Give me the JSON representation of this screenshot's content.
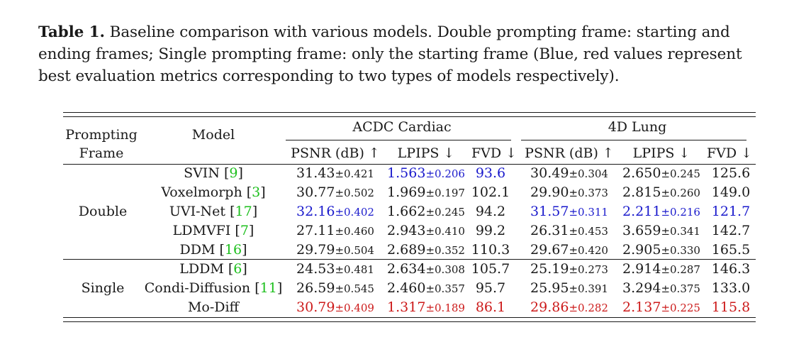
{
  "caption": {
    "label": "Table 1.",
    "text": " Baseline comparison with various models. Double prompting frame: starting and ending frames; Single prompting frame: only the starting frame (Blue, red values represent best evaluation metrics corresponding to two types of models respectively)."
  },
  "table": {
    "headers": {
      "prompting_line1": "Prompting",
      "prompting_line2": "Frame",
      "model": "Model",
      "group1": "ACDC Cardiac",
      "group2": "4D Lung",
      "metrics": [
        "PSNR (dB) ↑",
        "LPIPS ↓",
        "FVD ↓",
        "PSNR (dB) ↑",
        "LPIPS ↓",
        "FVD ↓"
      ]
    },
    "groups": [
      {
        "name": "Double"
      },
      {
        "name": "Single"
      }
    ],
    "rows": [
      {
        "model": "SVIN ",
        "ref": "9",
        "c1v": "31.43",
        "c1e": "±0.421",
        "c2v": "1.563",
        "c2e": "±0.206",
        "c3": "93.6",
        "c4v": "30.49",
        "c4e": "±0.304",
        "c5v": "2.650",
        "c5e": "±0.245",
        "c6": "125.6"
      },
      {
        "model": "Voxelmorph ",
        "ref": "3",
        "c1v": "30.77",
        "c1e": "±0.502",
        "c2v": "1.969",
        "c2e": "±0.197",
        "c3": "102.1",
        "c4v": "29.90",
        "c4e": "±0.373",
        "c5v": "2.815",
        "c5e": "±0.260",
        "c6": "149.0"
      },
      {
        "model": "UVI-Net ",
        "ref": "17",
        "c1v": "32.16",
        "c1e": "±0.402",
        "c2v": "1.662",
        "c2e": "±0.245",
        "c3": "94.2",
        "c4v": "31.57",
        "c4e": "±0.311",
        "c5v": "2.211",
        "c5e": "±0.216",
        "c6": "121.7"
      },
      {
        "model": "LDMVFI ",
        "ref": "7",
        "c1v": "27.11",
        "c1e": "±0.460",
        "c2v": "2.943",
        "c2e": "±0.410",
        "c3": "99.2",
        "c4v": "26.31",
        "c4e": "±0.453",
        "c5v": "3.659",
        "c5e": "±0.341",
        "c6": "142.7"
      },
      {
        "model": "DDM ",
        "ref": "16",
        "c1v": "29.79",
        "c1e": "±0.504",
        "c2v": "2.689",
        "c2e": "±0.352",
        "c3": "110.3",
        "c4v": "29.67",
        "c4e": "±0.420",
        "c5v": "2.905",
        "c5e": "±0.330",
        "c6": "165.5"
      },
      {
        "model": "LDDM ",
        "ref": "6",
        "c1v": "24.53",
        "c1e": "±0.481",
        "c2v": "2.634",
        "c2e": "±0.308",
        "c3": "105.7",
        "c4v": "25.19",
        "c4e": "±0.273",
        "c5v": "2.914",
        "c5e": "±0.287",
        "c6": "146.3"
      },
      {
        "model": "Condi-Diffusion ",
        "ref": "11",
        "c1v": "26.59",
        "c1e": "±0.545",
        "c2v": "2.460",
        "c2e": "±0.357",
        "c3": "95.7",
        "c4v": "25.95",
        "c4e": "±0.391",
        "c5v": "3.294",
        "c5e": "±0.375",
        "c6": "133.0"
      },
      {
        "model": "Mo-Diff",
        "ref": "",
        "c1v": "30.79",
        "c1e": "±0.409",
        "c2v": "1.317",
        "c2e": "±0.189",
        "c3": "86.1",
        "c4v": "29.86",
        "c4e": "±0.282",
        "c5v": "2.137",
        "c5e": "±0.225",
        "c6": "115.8"
      }
    ],
    "colors": {
      "best_double": "#1a1acc",
      "best_single": "#cc1a1a",
      "citation": "#1dbf1d"
    }
  }
}
